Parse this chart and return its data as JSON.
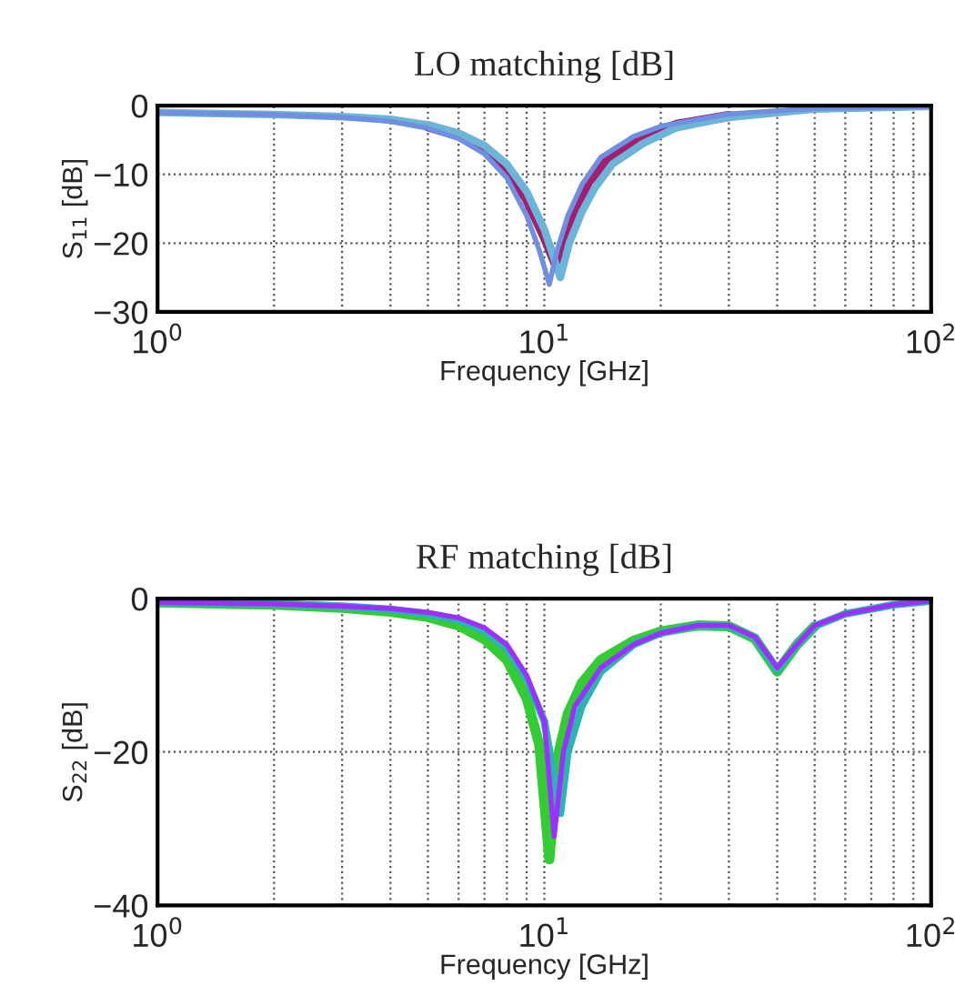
{
  "chart_data": [
    {
      "type": "line",
      "title": "LO matching [dB]",
      "xlabel": "Frequency [GHz]",
      "ylabel": "S$_{11}$ [dB]",
      "log": "x",
      "grid": true,
      "line_style": "solid",
      "xlim": [
        1,
        100
      ],
      "ylim": [
        -30,
        0
      ],
      "xticks": [
        {
          "value": 1,
          "label": "10$^{0}$"
        },
        {
          "value": 10,
          "label": "10$^{1}$"
        },
        {
          "value": 100,
          "label": "10$^{2}$"
        }
      ],
      "yticks": [
        {
          "value": -30,
          "label": "−30"
        },
        {
          "value": -20,
          "label": "−20"
        },
        {
          "value": -10,
          "label": "−10"
        },
        0
      ],
      "series": [
        {
          "color": "#a0206f",
          "x": [
            5,
            6,
            7,
            8,
            9,
            10,
            10.7,
            11.3,
            12,
            13,
            15,
            18,
            22,
            30
          ],
          "values": [
            -3,
            -4.3,
            -6.3,
            -9.3,
            -13.5,
            -19,
            -23,
            -19.5,
            -15,
            -11,
            -7,
            -4.5,
            -2.8,
            -1.5
          ]
        },
        {
          "color": "#6cb4d8",
          "x": [
            1,
            2,
            3,
            4,
            5,
            6,
            7,
            8,
            9,
            10,
            11,
            11.6,
            12.5,
            13.5,
            15,
            18,
            22,
            30,
            50,
            100
          ],
          "values": [
            -1,
            -1.3,
            -1.6,
            -2,
            -2.8,
            -4,
            -5.8,
            -8.5,
            -12.5,
            -18,
            -25,
            -20,
            -15.5,
            -12,
            -8.5,
            -5.5,
            -3.2,
            -1.7,
            -0.5,
            -0.1
          ]
        },
        {
          "color": "#6f8fe0",
          "x": [
            1,
            2,
            3,
            4,
            5,
            6,
            7,
            8,
            9,
            9.7,
            10.3,
            10.8,
            11.5,
            12.5,
            14,
            17,
            20,
            30,
            50,
            100
          ],
          "values": [
            -1,
            -1.3,
            -1.7,
            -2.3,
            -3.3,
            -4.8,
            -7,
            -10.5,
            -16,
            -21,
            -26,
            -21,
            -16,
            -11.5,
            -7.5,
            -4.5,
            -3,
            -1.2,
            -0.4,
            -0.1
          ]
        }
      ]
    },
    {
      "type": "line",
      "title": "RF matching [dB]",
      "xlabel": "Frequency [GHz]",
      "ylabel": "S$_{22}$ [dB]",
      "log": "x",
      "grid": true,
      "line_style": "solid",
      "xlim": [
        1,
        100
      ],
      "ylim": [
        -40,
        0
      ],
      "xticks": [
        {
          "value": 1,
          "label": "10$^{0}$"
        },
        {
          "value": 10,
          "label": "10$^{1}$"
        },
        {
          "value": 100,
          "label": "10$^{2}$"
        }
      ],
      "yticks": [
        {
          "value": -40,
          "label": "−40"
        },
        {
          "value": -20,
          "label": "−20"
        },
        0
      ],
      "series": [
        {
          "color": "#33cc33",
          "x": [
            1,
            2,
            3,
            4,
            5,
            6,
            7,
            8,
            9,
            9.7,
            10.3,
            10.9,
            11.5,
            12.5,
            14,
            17,
            20,
            25,
            30,
            35,
            40,
            45,
            50
          ],
          "values": [
            -0.5,
            -0.8,
            -1.2,
            -1.7,
            -2.4,
            -3.5,
            -5.3,
            -8,
            -13,
            -19,
            -34,
            -20,
            -15,
            -11,
            -8,
            -5.5,
            -4.3,
            -3.5,
            -3.6,
            -5.2,
            -9.5,
            -6,
            -3.6
          ]
        },
        {
          "color": "#2ab5b0",
          "x": [
            1,
            2,
            3,
            4,
            5,
            6,
            7,
            8,
            9,
            10,
            11,
            11.5,
            12.5,
            14,
            17,
            20,
            25,
            30,
            35,
            40,
            45,
            50,
            60,
            80,
            100
          ],
          "values": [
            -0.5,
            -0.7,
            -1,
            -1.4,
            -2,
            -2.8,
            -4.2,
            -6.5,
            -10.5,
            -16,
            -28,
            -20,
            -14,
            -9.5,
            -6,
            -4.5,
            -3.5,
            -3.6,
            -5.1,
            -9.3,
            -6,
            -3.6,
            -2,
            -0.8,
            -0.3
          ]
        },
        {
          "color": "#9b30ff",
          "x": [
            1,
            2,
            3,
            4,
            5,
            6,
            7,
            8,
            9,
            10,
            10.6,
            11.2,
            12,
            14,
            17,
            20,
            25,
            30,
            35,
            40,
            45,
            50,
            60,
            80,
            100
          ],
          "values": [
            -0.5,
            -0.7,
            -1,
            -1.3,
            -1.8,
            -2.5,
            -3.8,
            -6,
            -10,
            -16,
            -31,
            -20,
            -14,
            -9,
            -6,
            -4.5,
            -3.5,
            -3.5,
            -5,
            -9,
            -6,
            -3.5,
            -2,
            -0.8,
            -0.3
          ]
        }
      ]
    }
  ]
}
